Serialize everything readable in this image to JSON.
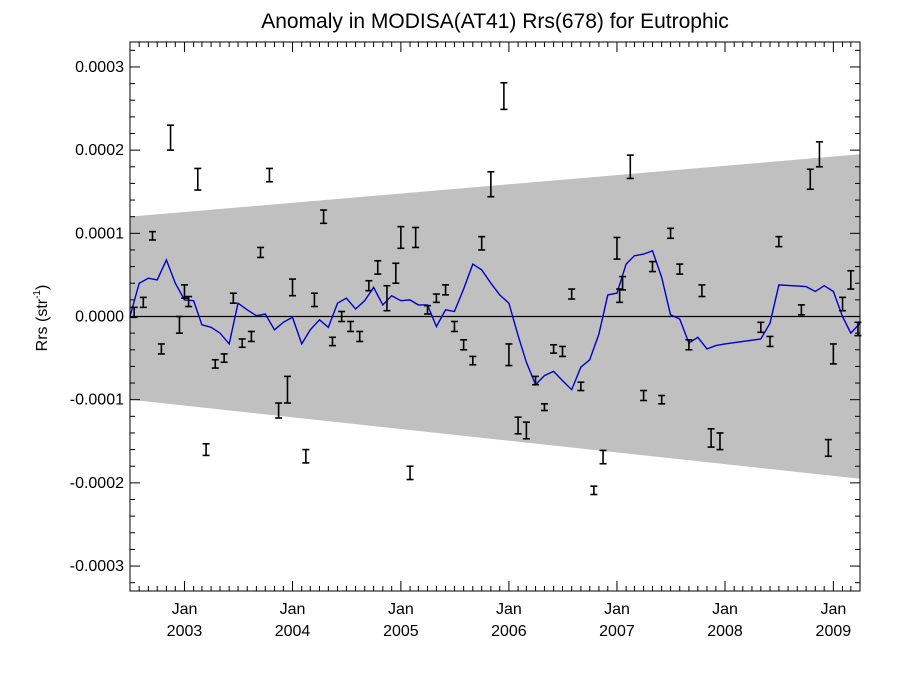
{
  "chart_data": {
    "type": "line",
    "title": "Anomaly in MODISA(AT41) Rrs(678) for Eutrophic",
    "ylabel": "Rrs (str",
    "ylabel_superscript": "-1",
    "ylabel_suffix": ")",
    "xlabel": "",
    "xlim": [
      "2002-07-01",
      "2009-04-01"
    ],
    "ylim": [
      -0.00033,
      0.00033
    ],
    "y_ticks": [
      -0.0003,
      -0.0002,
      -0.0001,
      0.0,
      0.0001,
      0.0002,
      0.0003
    ],
    "y_tick_labels": [
      "-0.0003",
      "-0.0002",
      "-0.0001",
      "0.0000",
      "0.0001",
      "0.0002",
      "0.0003"
    ],
    "x_ticks": [
      {
        "date": "2003-01-01",
        "month": "Jan",
        "year": "2003"
      },
      {
        "date": "2004-01-01",
        "month": "Jan",
        "year": "2004"
      },
      {
        "date": "2005-01-01",
        "month": "Jan",
        "year": "2005"
      },
      {
        "date": "2006-01-01",
        "month": "Jan",
        "year": "2006"
      },
      {
        "date": "2007-01-01",
        "month": "Jan",
        "year": "2007"
      },
      {
        "date": "2008-01-01",
        "month": "Jan",
        "year": "2008"
      },
      {
        "date": "2009-01-01",
        "month": "Jan",
        "year": "2009"
      }
    ],
    "grid": false,
    "colors": {
      "band": "#c0c0c0",
      "line": "#0000cc",
      "error_bar": "#000000",
      "zero_line": "#000000"
    },
    "band": {
      "start_date": "2002-07-01",
      "end_date": "2009-04-01",
      "upper_start": 0.00012,
      "upper_end": 0.000195,
      "lower_start": -0.0001,
      "lower_end": -0.000195
    },
    "zero_line": 0.0,
    "series": [
      {
        "type": "errorbar",
        "points": [
          {
            "x": "2002-07-15",
            "y": 5e-06,
            "err": 6e-06
          },
          {
            "x": "2002-08-15",
            "y": 1.7e-05,
            "err": 6e-06
          },
          {
            "x": "2002-09-15",
            "y": 9.7e-05,
            "err": 5e-06
          },
          {
            "x": "2002-10-15",
            "y": -3.9e-05,
            "err": 6e-06
          },
          {
            "x": "2002-11-15",
            "y": 0.000215,
            "err": 1.5e-05
          },
          {
            "x": "2002-12-15",
            "y": -1e-05,
            "err": 1e-05
          },
          {
            "x": "2003-01-01",
            "y": 3e-05,
            "err": 8e-06
          },
          {
            "x": "2003-01-15",
            "y": 1.8e-05,
            "err": 6e-06
          },
          {
            "x": "2003-02-15",
            "y": 0.000165,
            "err": 1.3e-05
          },
          {
            "x": "2003-03-15",
            "y": -0.00016,
            "err": 7e-06
          },
          {
            "x": "2003-04-15",
            "y": -5.7e-05,
            "err": 5e-06
          },
          {
            "x": "2003-05-15",
            "y": -5e-05,
            "err": 5e-06
          },
          {
            "x": "2003-06-15",
            "y": 2.2e-05,
            "err": 6e-06
          },
          {
            "x": "2003-07-15",
            "y": -3.2e-05,
            "err": 5e-06
          },
          {
            "x": "2003-08-15",
            "y": -2.4e-05,
            "err": 6e-06
          },
          {
            "x": "2003-09-15",
            "y": 7.7e-05,
            "err": 6e-06
          },
          {
            "x": "2003-10-15",
            "y": 0.00017,
            "err": 8e-06
          },
          {
            "x": "2003-11-15",
            "y": -0.000113,
            "err": 9e-06
          },
          {
            "x": "2003-12-15",
            "y": -8.8e-05,
            "err": 1.6e-05
          },
          {
            "x": "2004-01-01",
            "y": 3.5e-05,
            "err": 1e-05
          },
          {
            "x": "2004-02-15",
            "y": -0.000168,
            "err": 8e-06
          },
          {
            "x": "2004-03-15",
            "y": 2e-05,
            "err": 8e-06
          },
          {
            "x": "2004-04-15",
            "y": 0.00012,
            "err": 8e-06
          },
          {
            "x": "2004-05-15",
            "y": -3e-05,
            "err": 5e-06
          },
          {
            "x": "2004-06-15",
            "y": 0.0,
            "err": 6e-06
          },
          {
            "x": "2004-07-15",
            "y": -1.2e-05,
            "err": 6e-06
          },
          {
            "x": "2004-08-15",
            "y": -2.4e-05,
            "err": 6e-06
          },
          {
            "x": "2004-09-15",
            "y": 3.7e-05,
            "err": 6e-06
          },
          {
            "x": "2004-10-15",
            "y": 5.9e-05,
            "err": 8e-06
          },
          {
            "x": "2004-11-15",
            "y": 2.2e-05,
            "err": 1.5e-05
          },
          {
            "x": "2004-12-15",
            "y": 5.2e-05,
            "err": 1.2e-05
          },
          {
            "x": "2005-01-01",
            "y": 9.5e-05,
            "err": 1.3e-05
          },
          {
            "x": "2005-02-01",
            "y": -0.000188,
            "err": 8e-06
          },
          {
            "x": "2005-02-20",
            "y": 9.5e-05,
            "err": 1.2e-05
          },
          {
            "x": "2005-04-01",
            "y": 8e-06,
            "err": 5e-06
          },
          {
            "x": "2005-05-01",
            "y": 2.2e-05,
            "err": 5e-06
          },
          {
            "x": "2005-06-01",
            "y": 3.2e-05,
            "err": 6e-06
          },
          {
            "x": "2005-07-01",
            "y": -1.2e-05,
            "err": 6e-06
          },
          {
            "x": "2005-08-01",
            "y": -3.4e-05,
            "err": 6e-06
          },
          {
            "x": "2005-09-01",
            "y": -5.3e-05,
            "err": 5e-06
          },
          {
            "x": "2005-10-01",
            "y": 8.8e-05,
            "err": 8e-06
          },
          {
            "x": "2005-11-01",
            "y": 0.000159,
            "err": 1.5e-05
          },
          {
            "x": "2005-12-15",
            "y": 0.000265,
            "err": 1.6e-05
          },
          {
            "x": "2006-01-01",
            "y": -4.6e-05,
            "err": 1.3e-05
          },
          {
            "x": "2006-02-01",
            "y": -0.000131,
            "err": 1e-05
          },
          {
            "x": "2006-03-01",
            "y": -0.000137,
            "err": 1e-05
          },
          {
            "x": "2006-04-01",
            "y": -7.7e-05,
            "err": 5e-06
          },
          {
            "x": "2006-05-01",
            "y": -0.000109,
            "err": 4e-06
          },
          {
            "x": "2006-06-01",
            "y": -3.9e-05,
            "err": 5e-06
          },
          {
            "x": "2006-07-01",
            "y": -4.2e-05,
            "err": 6e-06
          },
          {
            "x": "2006-08-01",
            "y": 2.7e-05,
            "err": 6e-06
          },
          {
            "x": "2006-09-01",
            "y": -8.4e-05,
            "err": 5e-06
          },
          {
            "x": "2006-10-15",
            "y": -0.000209,
            "err": 5e-06
          },
          {
            "x": "2006-11-15",
            "y": -0.000169,
            "err": 8e-06
          },
          {
            "x": "2007-01-01",
            "y": 8.2e-05,
            "err": 1.3e-05
          },
          {
            "x": "2007-01-10",
            "y": 2.5e-05,
            "err": 8e-06
          },
          {
            "x": "2007-01-20",
            "y": 4e-05,
            "err": 8e-06
          },
          {
            "x": "2007-02-15",
            "y": 0.00018,
            "err": 1.4e-05
          },
          {
            "x": "2007-04-01",
            "y": -9.5e-05,
            "err": 6e-06
          },
          {
            "x": "2007-05-01",
            "y": 6e-05,
            "err": 6e-06
          },
          {
            "x": "2007-06-01",
            "y": -0.0001,
            "err": 5e-06
          },
          {
            "x": "2007-07-01",
            "y": 0.0001,
            "err": 6e-06
          },
          {
            "x": "2007-08-01",
            "y": 5.7e-05,
            "err": 6e-06
          },
          {
            "x": "2007-09-01",
            "y": -3.4e-05,
            "err": 6e-06
          },
          {
            "x": "2007-10-15",
            "y": 3.1e-05,
            "err": 7e-06
          },
          {
            "x": "2007-11-15",
            "y": -0.000146,
            "err": 1.1e-05
          },
          {
            "x": "2007-12-15",
            "y": -0.00015,
            "err": 1e-05
          },
          {
            "x": "2008-05-01",
            "y": -1.3e-05,
            "err": 6e-06
          },
          {
            "x": "2008-06-01",
            "y": -3e-05,
            "err": 6e-06
          },
          {
            "x": "2008-07-01",
            "y": 9e-05,
            "err": 6e-06
          },
          {
            "x": "2008-09-15",
            "y": 8e-06,
            "err": 6e-06
          },
          {
            "x": "2008-10-15",
            "y": 0.000165,
            "err": 1.2e-05
          },
          {
            "x": "2008-11-15",
            "y": 0.000195,
            "err": 1.5e-05
          },
          {
            "x": "2008-12-15",
            "y": -0.000158,
            "err": 1e-05
          },
          {
            "x": "2009-01-01",
            "y": -4.5e-05,
            "err": 1.2e-05
          },
          {
            "x": "2009-02-01",
            "y": 1.5e-05,
            "err": 8e-06
          },
          {
            "x": "2009-03-01",
            "y": 4.4e-05,
            "err": 1.1e-05
          },
          {
            "x": "2009-03-25",
            "y": -1.5e-05,
            "err": 8e-06
          }
        ]
      },
      {
        "type": "line",
        "points": [
          {
            "x": "2002-07-01",
            "y": 0.0
          },
          {
            "x": "2002-08-01",
            "y": 4e-05
          },
          {
            "x": "2002-09-01",
            "y": 4.6e-05
          },
          {
            "x": "2002-10-01",
            "y": 4.4e-05
          },
          {
            "x": "2002-11-01",
            "y": 6.8e-05
          },
          {
            "x": "2002-12-01",
            "y": 4e-05
          },
          {
            "x": "2003-01-01",
            "y": 2e-05
          },
          {
            "x": "2003-02-01",
            "y": 1.9e-05
          },
          {
            "x": "2003-03-01",
            "y": -1e-05
          },
          {
            "x": "2003-04-01",
            "y": -1.3e-05
          },
          {
            "x": "2003-05-01",
            "y": -2e-05
          },
          {
            "x": "2003-06-01",
            "y": -3.3e-05
          },
          {
            "x": "2003-07-01",
            "y": 1.6e-05
          },
          {
            "x": "2003-08-01",
            "y": 8e-06
          },
          {
            "x": "2003-09-01",
            "y": 1e-06
          },
          {
            "x": "2003-10-01",
            "y": 3e-06
          },
          {
            "x": "2003-11-01",
            "y": -1.6e-05
          },
          {
            "x": "2003-12-01",
            "y": -7e-06
          },
          {
            "x": "2004-01-01",
            "y": -1e-06
          },
          {
            "x": "2004-02-01",
            "y": -3.3e-05
          },
          {
            "x": "2004-03-01",
            "y": -1.6e-05
          },
          {
            "x": "2004-04-01",
            "y": -4e-06
          },
          {
            "x": "2004-05-01",
            "y": -1.3e-05
          },
          {
            "x": "2004-06-01",
            "y": 1.6e-05
          },
          {
            "x": "2004-07-01",
            "y": 2.2e-05
          },
          {
            "x": "2004-08-01",
            "y": 9e-06
          },
          {
            "x": "2004-09-01",
            "y": 1.9e-05
          },
          {
            "x": "2004-10-01",
            "y": 3.5e-05
          },
          {
            "x": "2004-11-01",
            "y": 1.4e-05
          },
          {
            "x": "2004-12-01",
            "y": 2.5e-05
          },
          {
            "x": "2005-01-01",
            "y": 1.9e-05
          },
          {
            "x": "2005-02-01",
            "y": 2e-05
          },
          {
            "x": "2005-03-01",
            "y": 1.4e-05
          },
          {
            "x": "2005-04-01",
            "y": 1.4e-05
          },
          {
            "x": "2005-05-01",
            "y": -1.2e-05
          },
          {
            "x": "2005-06-01",
            "y": 8e-06
          },
          {
            "x": "2005-07-01",
            "y": 6e-06
          },
          {
            "x": "2005-08-01",
            "y": 3.3e-05
          },
          {
            "x": "2005-09-01",
            "y": 6.3e-05
          },
          {
            "x": "2005-10-01",
            "y": 5.6e-05
          },
          {
            "x": "2005-11-01",
            "y": 4e-05
          },
          {
            "x": "2005-12-01",
            "y": 2.6e-05
          },
          {
            "x": "2006-01-01",
            "y": 1.6e-05
          },
          {
            "x": "2006-02-01",
            "y": -2.3e-05
          },
          {
            "x": "2006-03-01",
            "y": -5.5e-05
          },
          {
            "x": "2006-04-01",
            "y": -8.2e-05
          },
          {
            "x": "2006-05-01",
            "y": -7.1e-05
          },
          {
            "x": "2006-06-01",
            "y": -6.6e-05
          },
          {
            "x": "2006-07-01",
            "y": -7.7e-05
          },
          {
            "x": "2006-08-01",
            "y": -8.8e-05
          },
          {
            "x": "2006-09-01",
            "y": -6.1e-05
          },
          {
            "x": "2006-10-01",
            "y": -5.2e-05
          },
          {
            "x": "2006-11-01",
            "y": -2.1e-05
          },
          {
            "x": "2006-12-01",
            "y": 2.6e-05
          },
          {
            "x": "2007-01-01",
            "y": 2.8e-05
          },
          {
            "x": "2007-02-01",
            "y": 6.3e-05
          },
          {
            "x": "2007-03-01",
            "y": 7.3e-05
          },
          {
            "x": "2007-04-01",
            "y": 7.5e-05
          },
          {
            "x": "2007-05-01",
            "y": 7.9e-05
          },
          {
            "x": "2007-06-01",
            "y": 4.7e-05
          },
          {
            "x": "2007-07-01",
            "y": 2e-06
          },
          {
            "x": "2007-08-01",
            "y": -3e-06
          },
          {
            "x": "2007-09-01",
            "y": -3.2e-05
          },
          {
            "x": "2007-10-01",
            "y": -2.5e-05
          },
          {
            "x": "2007-11-01",
            "y": -3.9e-05
          },
          {
            "x": "2007-12-01",
            "y": -3.5e-05
          },
          {
            "x": "2008-01-01",
            "y": -3.3e-05
          },
          {
            "x": "2008-05-01",
            "y": -2.7e-05
          },
          {
            "x": "2008-06-01",
            "y": -8e-06
          },
          {
            "x": "2008-07-01",
            "y": 3.8e-05
          },
          {
            "x": "2008-10-01",
            "y": 3.6e-05
          },
          {
            "x": "2008-11-01",
            "y": 3e-05
          },
          {
            "x": "2008-12-01",
            "y": 3.7e-05
          },
          {
            "x": "2009-01-01",
            "y": 3e-05
          },
          {
            "x": "2009-02-01",
            "y": 0.0
          },
          {
            "x": "2009-03-01",
            "y": -2e-05
          },
          {
            "x": "2009-04-01",
            "y": -8e-06
          }
        ]
      }
    ]
  }
}
